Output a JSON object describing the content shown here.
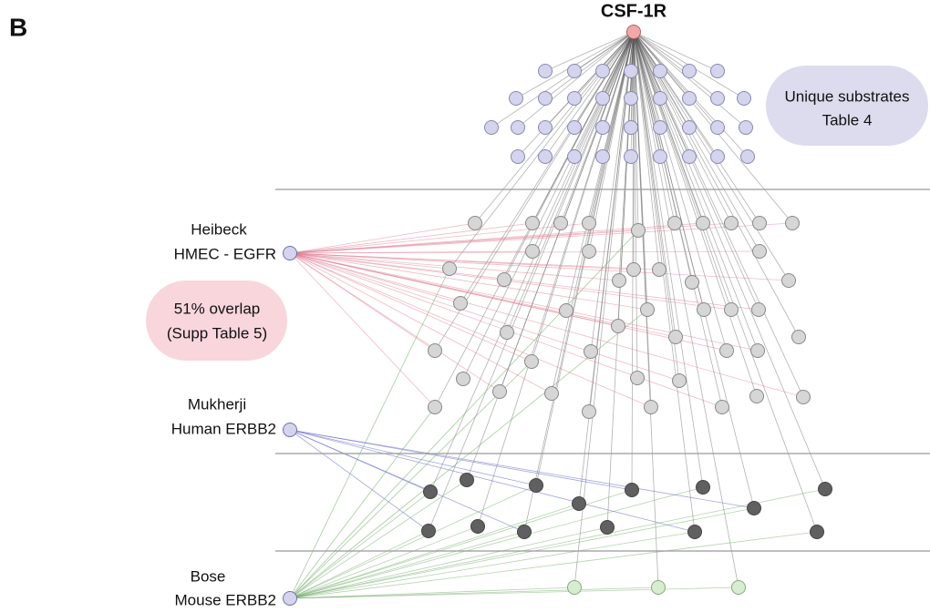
{
  "panel_label": "B",
  "target": {
    "label": "CSF-1R"
  },
  "unique_note": {
    "line1": "Unique substrates",
    "line2": "Table 4"
  },
  "overlap_note": {
    "line1": "51% overlap",
    "line2": "(Supp Table 5)"
  },
  "sources": [
    {
      "line1": "Heibeck",
      "line2": "HMEC - EGFR"
    },
    {
      "line1": "Mukherji",
      "line2": "Human ERBB2"
    },
    {
      "line1": "Bose",
      "line2": "Mouse ERBB2"
    }
  ]
}
